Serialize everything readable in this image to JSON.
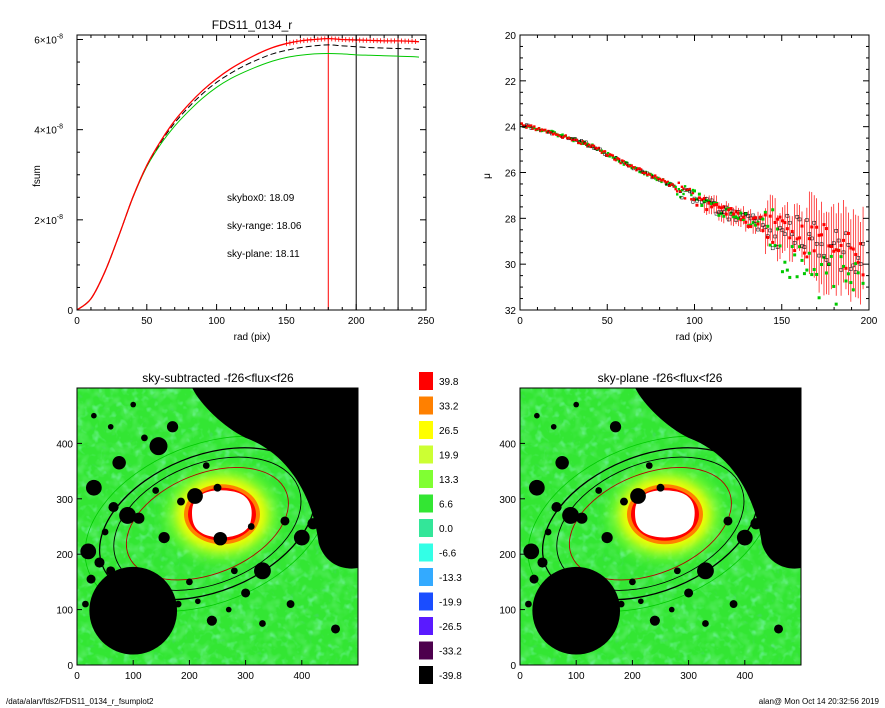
{
  "footer": {
    "path": "/data/alan/fds2/FDS11_0134_r_fsumplot2",
    "user_stamp": "alan@  Mon Oct 14 20:32:56 2019"
  },
  "chart_data": [
    {
      "id": "fsum",
      "type": "line",
      "title": "FDS11_0134_r",
      "xlabel": "rad (pix)",
      "ylabel": "fsum",
      "xlim": [
        0,
        250
      ],
      "ylim": [
        0,
        6.1e-08
      ],
      "xticks": [
        "0",
        "50",
        "100",
        "150",
        "200",
        "250"
      ],
      "yticks": [
        {
          "base": "0",
          "exp": ""
        },
        {
          "base": "2×10",
          "exp": "-8"
        },
        {
          "base": "4×10",
          "exp": "-8"
        },
        {
          "base": "6×10",
          "exp": "-8"
        }
      ],
      "x": [
        0,
        10,
        20,
        30,
        40,
        50,
        60,
        70,
        80,
        90,
        100,
        110,
        120,
        130,
        140,
        150,
        160,
        170,
        180,
        190,
        200,
        210,
        220,
        230,
        240,
        245
      ],
      "series": [
        {
          "name": "skybox0",
          "color": "#000000",
          "dash": "6,3",
          "values": [
            0,
            0.25,
            0.85,
            1.65,
            2.5,
            3.2,
            3.72,
            4.15,
            4.5,
            4.8,
            5.05,
            5.25,
            5.42,
            5.56,
            5.68,
            5.76,
            5.82,
            5.86,
            5.88,
            5.86,
            5.84,
            5.82,
            5.81,
            5.8,
            5.79,
            5.78
          ]
        },
        {
          "name": "sky-range",
          "color": "#ff0000",
          "dash": "",
          "values": [
            0,
            0.25,
            0.85,
            1.65,
            2.5,
            3.21,
            3.75,
            4.2,
            4.56,
            4.87,
            5.13,
            5.35,
            5.53,
            5.69,
            5.82,
            5.91,
            5.97,
            6.0,
            6.02,
            6.0,
            5.99,
            5.98,
            5.97,
            5.97,
            5.96,
            5.95
          ]
        },
        {
          "name": "sky-plane",
          "color": "#00c800",
          "dash": "",
          "values": [
            0,
            0.25,
            0.85,
            1.65,
            2.49,
            3.18,
            3.68,
            4.08,
            4.41,
            4.7,
            4.94,
            5.13,
            5.28,
            5.41,
            5.52,
            5.6,
            5.65,
            5.68,
            5.69,
            5.68,
            5.66,
            5.65,
            5.64,
            5.63,
            5.62,
            5.61
          ]
        }
      ],
      "vlines": [
        {
          "x": 180,
          "color": "#ff0000"
        },
        {
          "x": 200,
          "color": "#000000"
        },
        {
          "x": 230,
          "color": "#000000"
        }
      ],
      "annotations": [
        {
          "text": "skybox0: 18.09",
          "color": "#000000"
        },
        {
          "text": "sky-range: 18.06",
          "color": "#ff0000"
        },
        {
          "text": "sky-plane: 18.11",
          "color": "#00c800"
        }
      ]
    },
    {
      "id": "mu",
      "type": "scatter",
      "xlabel": "rad (pix)",
      "ylabel": "μ",
      "xlim": [
        0,
        200
      ],
      "ylim": [
        32,
        20
      ],
      "inverted_y": true,
      "xticks": [
        "0",
        "50",
        "100",
        "150",
        "200"
      ],
      "yticks": [
        "20",
        "22",
        "24",
        "26",
        "28",
        "30",
        "32"
      ],
      "trend_x": [
        0,
        20,
        40,
        60,
        80,
        100,
        120,
        140,
        160,
        180,
        200
      ],
      "trend_y": [
        23.9,
        24.3,
        24.8,
        25.6,
        26.3,
        27.1,
        27.8,
        28.3,
        28.8,
        29.3,
        29.7
      ],
      "series": [
        {
          "name": "",
          "color": "#ff0000"
        },
        {
          "name": "",
          "color": "#00c800"
        },
        {
          "name": "",
          "color": "#000000"
        }
      ]
    },
    {
      "id": "img1",
      "type": "heatmap",
      "title": "sky-subtracted -f26<flux<f26",
      "xlim": [
        0,
        500
      ],
      "ylim": [
        0,
        500
      ],
      "xticks": [
        "0",
        "100",
        "200",
        "300",
        "400"
      ],
      "yticks": [
        "0",
        "100",
        "200",
        "300",
        "400"
      ]
    },
    {
      "id": "img2",
      "type": "heatmap",
      "title": "sky-plane -f26<flux<f26",
      "xlim": [
        0,
        500
      ],
      "ylim": [
        0,
        500
      ],
      "xticks": [
        "0",
        "100",
        "200",
        "300",
        "400"
      ],
      "yticks": [
        "0",
        "100",
        "200",
        "300",
        "400"
      ]
    },
    {
      "id": "colorbar",
      "type": "table",
      "levels": [
        {
          "label": "39.8",
          "color": "#ff0000"
        },
        {
          "label": "33.2",
          "color": "#ff8000"
        },
        {
          "label": "26.5",
          "color": "#ffff00"
        },
        {
          "label": "19.9",
          "color": "#ccff33"
        },
        {
          "label": "13.3",
          "color": "#80ff33"
        },
        {
          "label": "6.6",
          "color": "#33e633"
        },
        {
          "label": "0.0",
          "color": "#33e699"
        },
        {
          "label": "-6.6",
          "color": "#33ffe6"
        },
        {
          "label": "-13.3",
          "color": "#33aaff"
        },
        {
          "label": "-19.9",
          "color": "#1a4dff"
        },
        {
          "label": "-26.5",
          "color": "#5a1aff"
        },
        {
          "label": "-33.2",
          "color": "#4d004d"
        },
        {
          "label": "-39.8",
          "color": "#000000"
        }
      ]
    }
  ]
}
